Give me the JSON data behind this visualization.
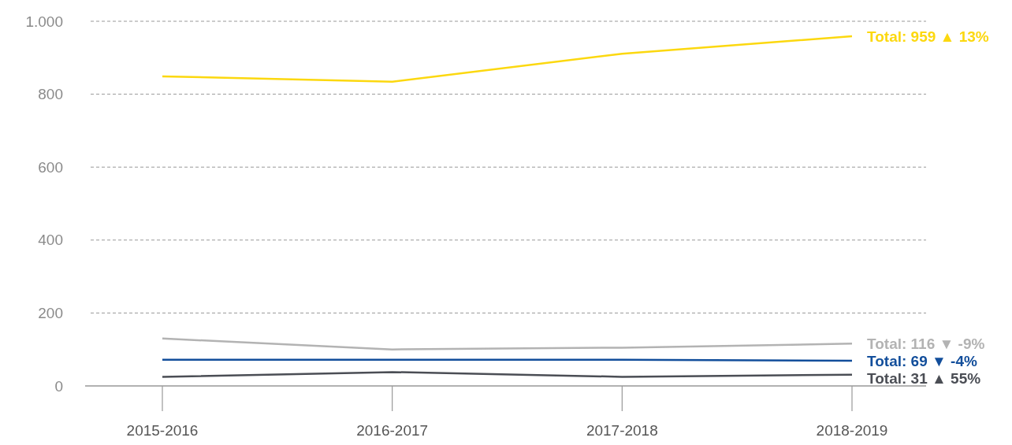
{
  "chart_data": {
    "type": "line",
    "categories": [
      "2015-2016",
      "2016-2017",
      "2017-2018",
      "2018-2019"
    ],
    "series": [
      {
        "color": "#fcd80f",
        "values": [
          849,
          834,
          911,
          959
        ]
      },
      {
        "color": "#b3b3b3",
        "values": [
          130,
          100,
          105,
          116
        ]
      },
      {
        "color": "#124e9b",
        "values": [
          72,
          72,
          72,
          69
        ]
      },
      {
        "color": "#4b4e55",
        "values": [
          25,
          38,
          25,
          31
        ]
      }
    ],
    "ylim": [
      0,
      1000
    ],
    "yticks": [
      0,
      200,
      400,
      600,
      800,
      {
        "value": 1000,
        "label": "1.000"
      }
    ],
    "grid": "y",
    "marker": "none",
    "annotations": [
      {
        "text": "Total: 959 ▲ 13%",
        "x": "2018-2019",
        "y": 959
      },
      {
        "text": "Total: 116 ▼ -9%",
        "x": "2018-2019",
        "y": 116
      },
      {
        "text": "Total: 69 ▼ -4%",
        "x": "2018-2019",
        "y": 69
      },
      {
        "text": "Total: 31 ▲ 55%",
        "x": "2018-2019",
        "y": 31
      }
    ]
  }
}
